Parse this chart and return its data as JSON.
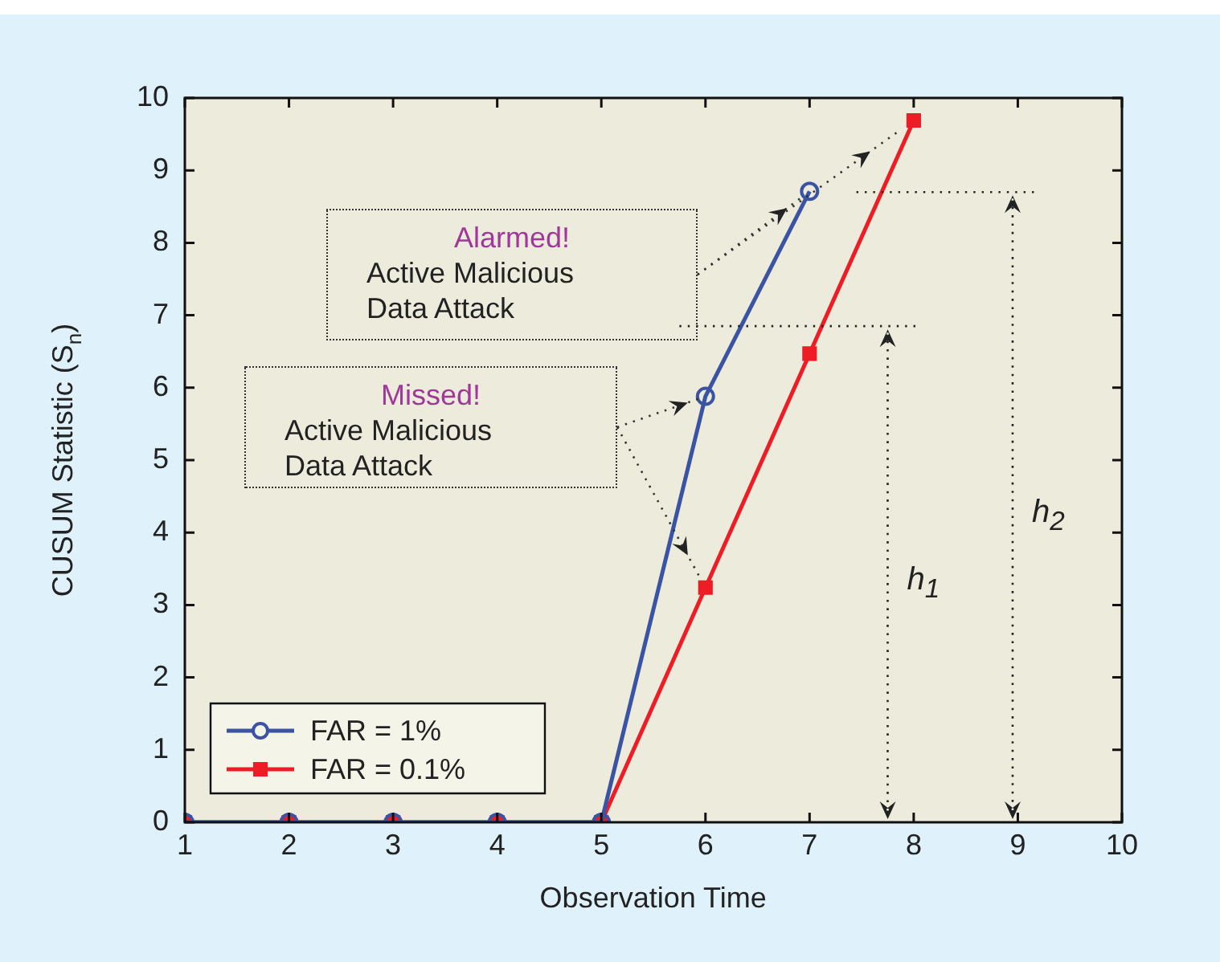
{
  "chart_data": {
    "type": "line",
    "xlabel": "Observation Time",
    "ylabel": "CUSUM Statistic (S$_{n}$)",
    "x": [
      1,
      2,
      3,
      4,
      5,
      6,
      7,
      8
    ],
    "series": [
      {
        "name": "FAR = 1%",
        "color": "#3a53a4",
        "marker": "circle",
        "values": [
          0,
          0,
          0,
          0,
          0,
          5.88,
          8.71,
          null
        ]
      },
      {
        "name": "FAR = 0.1%",
        "color": "#ee1c25",
        "marker": "square",
        "values": [
          0,
          0,
          0,
          0,
          0,
          3.24,
          6.47,
          9.69
        ]
      }
    ],
    "xlim": [
      1,
      10
    ],
    "ylim": [
      0,
      10
    ],
    "xticks": [
      1,
      2,
      3,
      4,
      5,
      6,
      7,
      8,
      9,
      10
    ],
    "yticks": [
      0,
      1,
      2,
      3,
      4,
      5,
      6,
      7,
      8,
      9,
      10
    ],
    "legend": "bottom left",
    "annotations": [
      "Alarmed!",
      "Active Malicious\nData Attack",
      "Missed!",
      "Active Malicious\nData Attack",
      "h$_{1}$",
      "h$_{2}$"
    ],
    "ref_lines": [
      {
        "axis": "y",
        "value": 6.85,
        "line_style": "dotted",
        "color": "#222222"
      },
      {
        "axis": "y",
        "value": 8.7,
        "line_style": "dotted",
        "color": "#222222"
      }
    ]
  }
}
